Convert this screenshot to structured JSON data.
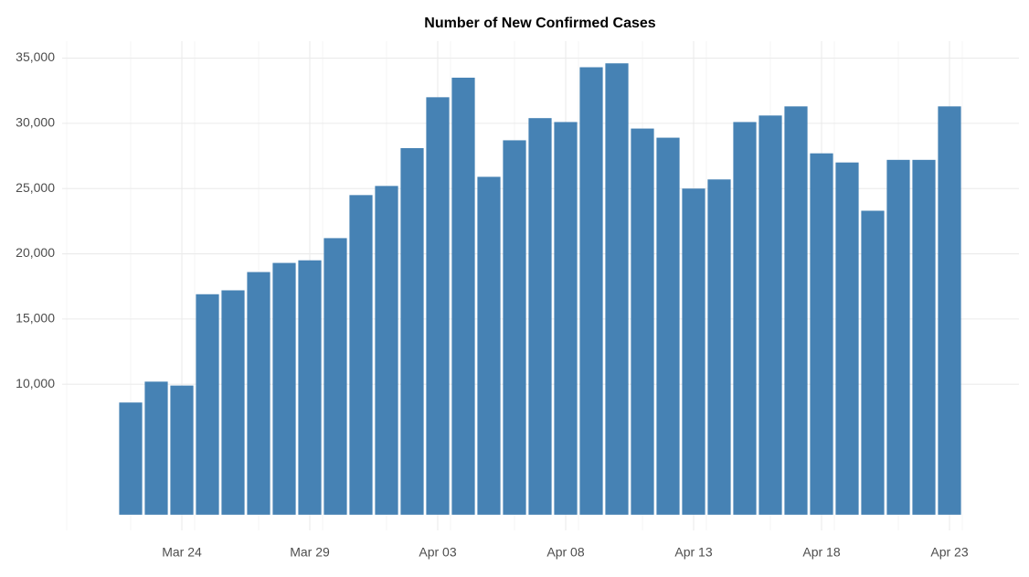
{
  "chart_data": {
    "type": "bar",
    "title": "Number of New Confirmed Cases",
    "categories": [
      null,
      null,
      "Mar 24",
      null,
      null,
      null,
      null,
      "Mar 29",
      null,
      null,
      null,
      null,
      "Apr 03",
      null,
      null,
      null,
      null,
      "Apr 08",
      null,
      null,
      null,
      null,
      "Apr 13",
      null,
      null,
      null,
      null,
      "Apr 18",
      null,
      null,
      null,
      null,
      "Apr 23"
    ],
    "values": [
      8600,
      10200,
      9900,
      16900,
      17200,
      18600,
      19300,
      19500,
      21200,
      24500,
      25200,
      28100,
      32000,
      33500,
      25900,
      28700,
      30400,
      30100,
      34300,
      34600,
      29600,
      28900,
      25000,
      25700,
      30100,
      30600,
      31300,
      27700,
      27000,
      23300,
      27200,
      27200,
      31300
    ],
    "color": "#4682b4",
    "ylim": [
      -1200,
      36300
    ],
    "yticks": [
      {
        "value": 10000,
        "label": "10,000"
      },
      {
        "value": 15000,
        "label": "15,000"
      },
      {
        "value": 20000,
        "label": "20,000"
      },
      {
        "value": 25000,
        "label": "25,000"
      },
      {
        "value": 30000,
        "label": "30,000"
      },
      {
        "value": 35000,
        "label": "35,000"
      }
    ],
    "grid": true
  }
}
